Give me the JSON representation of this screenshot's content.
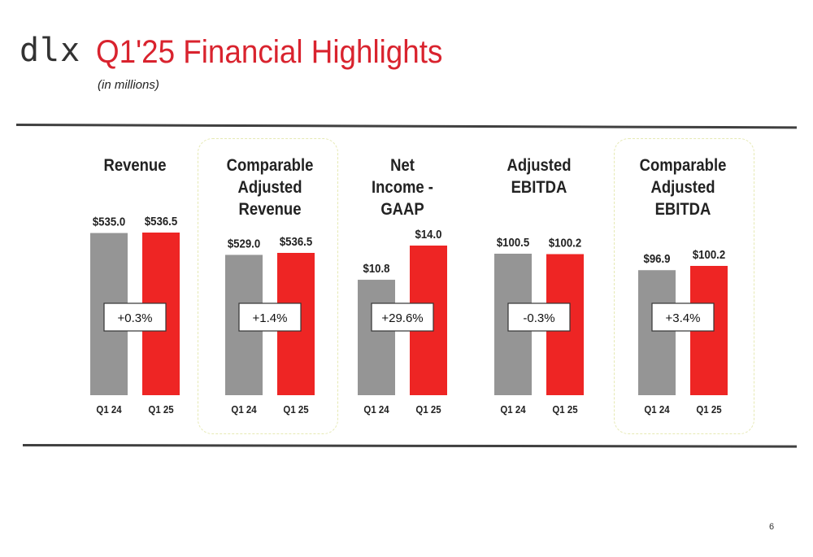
{
  "logo": "dlx",
  "title": "Q1'25 Financial Highlights",
  "subtitle": "(in millions)",
  "page_number": "6",
  "colors": {
    "prior": "#959595",
    "current": "#ee2524",
    "title": "#d9232e"
  },
  "chart_data": [
    {
      "type": "bar",
      "title_lines": [
        "Revenue"
      ],
      "categories": [
        "Q1 24",
        "Q1 25"
      ],
      "values": [
        535.0,
        536.5
      ],
      "value_labels": [
        "$535.0",
        "$536.5"
      ],
      "change_label": "+0.3%",
      "highlighted": false
    },
    {
      "type": "bar",
      "title_lines": [
        "Comparable",
        "Adjusted",
        "Revenue"
      ],
      "categories": [
        "Q1 24",
        "Q1 25"
      ],
      "values": [
        529.0,
        536.5
      ],
      "value_labels": [
        "$529.0",
        "$536.5"
      ],
      "change_label": "+1.4%",
      "highlighted": true
    },
    {
      "type": "bar",
      "title_lines": [
        "Net",
        "Income -",
        "GAAP"
      ],
      "categories": [
        "Q1 24",
        "Q1 25"
      ],
      "values": [
        10.8,
        14.0
      ],
      "value_labels": [
        "$10.8",
        "$14.0"
      ],
      "change_label": "+29.6%",
      "highlighted": false
    },
    {
      "type": "bar",
      "title_lines": [
        "Adjusted",
        "EBITDA"
      ],
      "categories": [
        "Q1 24",
        "Q1 25"
      ],
      "values": [
        100.5,
        100.2
      ],
      "value_labels": [
        "$100.5",
        "$100.2"
      ],
      "change_label": "-0.3%",
      "highlighted": false
    },
    {
      "type": "bar",
      "title_lines": [
        "Comparable",
        "Adjusted",
        "EBITDA"
      ],
      "categories": [
        "Q1 24",
        "Q1 25"
      ],
      "values": [
        96.9,
        100.2
      ],
      "value_labels": [
        "$96.9",
        "$100.2"
      ],
      "change_label": "+3.4%",
      "highlighted": true
    }
  ]
}
